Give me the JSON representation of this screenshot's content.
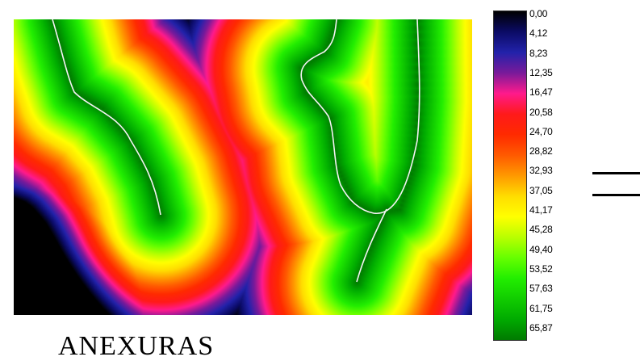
{
  "chart_data": {
    "type": "heatmap",
    "legend": {
      "placement": "right",
      "values": [
        "0,00",
        "4,12",
        "8,23",
        "12,35",
        "16,47",
        "20,58",
        "24,70",
        "28,82",
        "32,93",
        "37,05",
        "41,17",
        "45,28",
        "49,40",
        "53,52",
        "57,63",
        "61,75",
        "65,87"
      ],
      "colors": [
        "#000000",
        "#0b0b66",
        "#2222aa",
        "#7a1a9a",
        "#ff1a8c",
        "#ff1a1a",
        "#ff2a00",
        "#ff5a00",
        "#ff9900",
        "#ffdd00",
        "#ffff00",
        "#b8ff00",
        "#66ff00",
        "#22ee00",
        "#11cc00",
        "#00aa00",
        "#007a00"
      ]
    }
  },
  "map_caption": "ANEXURAS"
}
